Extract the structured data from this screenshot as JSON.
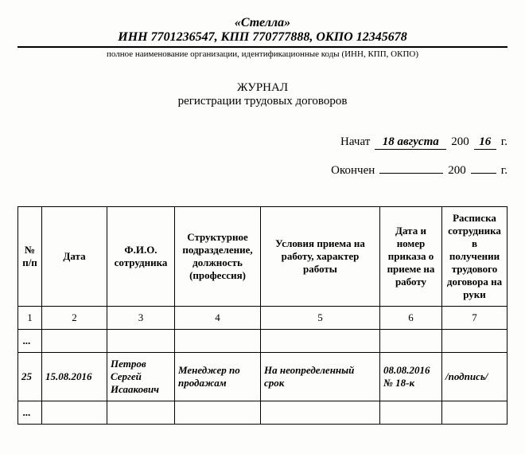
{
  "header": {
    "org_name": "«Стелла»",
    "codes_line": "ИНН 7701236547, КПП 770777888, ОКПО 12345678",
    "caption": "полное наименование организации, идентификационные коды (ИНН, КПП, ОКПО)"
  },
  "title": {
    "line1": "ЖУРНАЛ",
    "line2": "регистрации трудовых договоров"
  },
  "dates": {
    "start_label": "Начат",
    "start_day": "18 августа",
    "start_century": "200",
    "start_year": "16",
    "start_suffix": "г.",
    "end_label": "Окончен",
    "end_day": "",
    "end_century": "200",
    "end_year": "",
    "end_suffix": "г."
  },
  "table": {
    "headers": {
      "n": "№ п/п",
      "date": "Дата",
      "fio": "Ф.И.О. сотрудника",
      "dept": "Структурное подразделение, должность (профессия)",
      "cond": "Условия приема на работу, характер работы",
      "order": "Дата и номер приказа о приеме на работу",
      "sign": "Расписка сотрудника в получении трудового договора на руки"
    },
    "numbers": {
      "n": "1",
      "date": "2",
      "fio": "3",
      "dept": "4",
      "cond": "5",
      "order": "6",
      "sign": "7"
    },
    "ellipsis": "...",
    "row": {
      "n": "25",
      "date": "15.08.2016",
      "fio": "Петров Сергей Исаакович",
      "dept": "Менеджер по продажам",
      "cond": "На неопределенный срок",
      "order": "08.08.2016 № 18-к",
      "sign": "/подпись/"
    }
  }
}
